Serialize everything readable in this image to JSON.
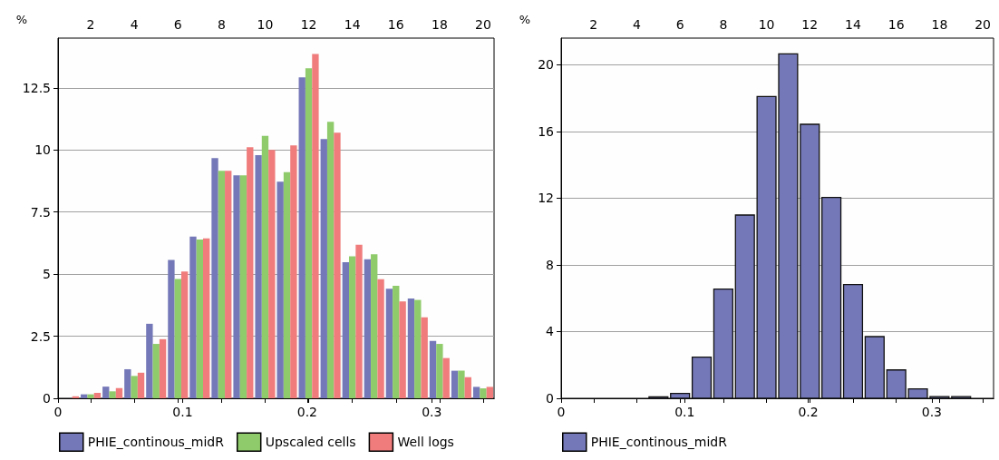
{
  "chart_data": [
    {
      "type": "histogram",
      "ylabel": "%",
      "bins": [
        0,
        0.0175,
        0.035,
        0.0525,
        0.07,
        0.0875,
        0.105,
        0.1225,
        0.14,
        0.1575,
        0.175,
        0.1925,
        0.21,
        0.2275,
        0.245,
        0.2625,
        0.28,
        0.2975,
        0.315,
        0.3325,
        0.35
      ],
      "series": [
        {
          "name": "PHIE_continous_midR",
          "color": "#7578b8",
          "values": [
            0,
            0.16,
            0.47,
            1.17,
            3.0,
            5.57,
            6.51,
            9.67,
            8.98,
            9.79,
            8.72,
            12.92,
            10.44,
            5.48,
            5.6,
            4.41,
            4.02,
            2.31,
            1.11,
            0.46
          ]
        },
        {
          "name": "Upscaled cells",
          "color": "#8fcb6b",
          "values": [
            0,
            0.16,
            0.28,
            0.9,
            2.19,
            4.8,
            6.39,
            9.16,
            8.98,
            10.56,
            9.1,
            13.29,
            11.13,
            5.72,
            5.8,
            4.53,
            3.96,
            2.19,
            1.11,
            0.4
          ]
        },
        {
          "name": "Well logs",
          "color": "#f07c7c",
          "values": [
            0.08,
            0.22,
            0.41,
            1.03,
            2.38,
            5.1,
            6.44,
            9.16,
            10.11,
            10.0,
            10.18,
            13.86,
            10.69,
            6.18,
            4.79,
            3.9,
            3.26,
            1.62,
            0.85,
            0.46
          ]
        }
      ],
      "xlim": [
        0,
        0.35
      ],
      "xticks": [
        0,
        0.1,
        0.2,
        0.3
      ],
      "ylim": [
        0,
        14.5
      ],
      "yticks": [
        0,
        2.5,
        5,
        7.5,
        10,
        12.5
      ],
      "x2lim": [
        0.5,
        20.5
      ],
      "x2ticks": [
        2,
        4,
        6,
        8,
        10,
        12,
        14,
        16,
        18,
        20
      ],
      "grid": "y",
      "legend": "bottom"
    },
    {
      "type": "histogram",
      "ylabel": "%",
      "bins": [
        0,
        0.0175,
        0.035,
        0.0525,
        0.07,
        0.0875,
        0.105,
        0.1225,
        0.14,
        0.1575,
        0.175,
        0.1925,
        0.21,
        0.2275,
        0.245,
        0.2625,
        0.28,
        0.2975,
        0.315,
        0.3325,
        0.35
      ],
      "series": [
        {
          "name": "PHIE_continous_midR",
          "color": "#7578b8",
          "values": [
            0,
            0,
            0,
            0,
            0.09,
            0.29,
            2.47,
            6.55,
            10.99,
            18.1,
            20.65,
            16.43,
            12.04,
            6.82,
            3.7,
            1.7,
            0.56,
            0.1,
            0.1,
            0
          ]
        }
      ],
      "xlim": [
        0,
        0.35
      ],
      "xticks": [
        0,
        0.1,
        0.2,
        0.3
      ],
      "ylim": [
        0,
        21.6
      ],
      "yticks": [
        0,
        4,
        8,
        12,
        16,
        20
      ],
      "x2lim": [
        0.5,
        20.5
      ],
      "x2ticks": [
        2,
        4,
        6,
        8,
        10,
        12,
        14,
        16,
        18,
        20
      ],
      "grid": "y",
      "legend": "bottom"
    }
  ]
}
